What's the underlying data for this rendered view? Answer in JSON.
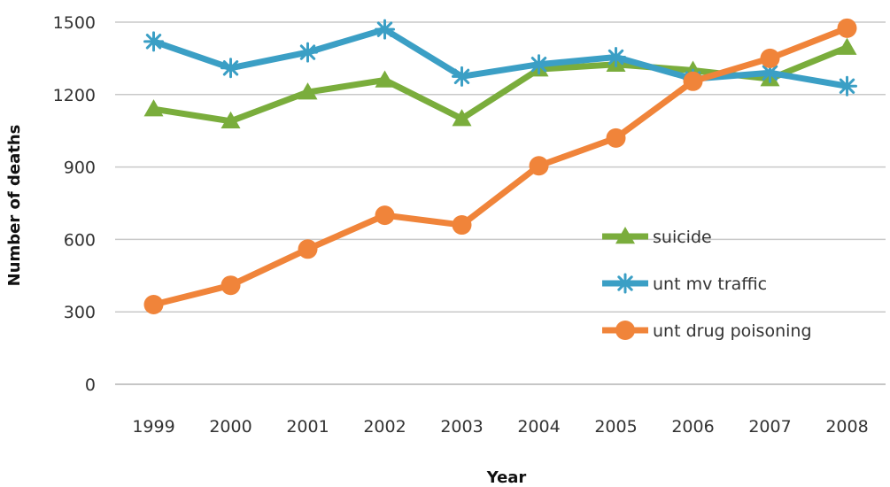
{
  "chart_data": {
    "type": "line",
    "title": "",
    "xlabel": "Year",
    "ylabel": "Number of deaths",
    "categories": [
      "1999",
      "2000",
      "2001",
      "2002",
      "2003",
      "2004",
      "2005",
      "2006",
      "2007",
      "2008"
    ],
    "ylim": [
      0,
      1500
    ],
    "yticks": [
      0,
      300,
      600,
      900,
      1200,
      1500
    ],
    "grid": "horizontal",
    "legend_position": "right-center",
    "series": [
      {
        "name": "suicide",
        "color": "#7aad3c",
        "marker": "triangle",
        "values": [
          1140,
          1090,
          1210,
          1260,
          1100,
          1305,
          1325,
          1300,
          1265,
          1395
        ]
      },
      {
        "name": "unt mv traffic",
        "color": "#3b9fc5",
        "marker": "asterisk",
        "values": [
          1420,
          1310,
          1375,
          1470,
          1275,
          1325,
          1355,
          1265,
          1290,
          1235
        ]
      },
      {
        "name": "unt drug poisoning",
        "color": "#f0843a",
        "marker": "circle",
        "values": [
          330,
          410,
          560,
          700,
          660,
          905,
          1020,
          1255,
          1350,
          1475
        ]
      }
    ]
  }
}
